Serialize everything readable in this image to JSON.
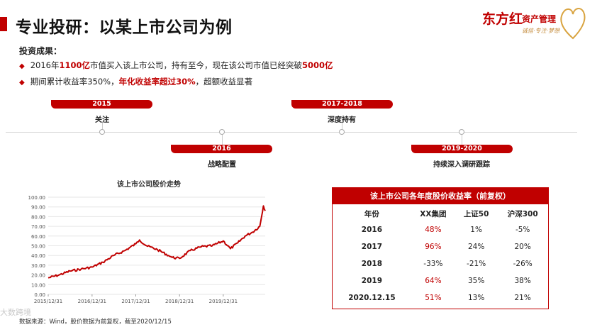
{
  "header": {
    "title": "专业投研：以某上市公司为例",
    "logo_main": "东方红",
    "logo_side": "资产管理",
    "logo_tag": "诚信·专注·梦想"
  },
  "results": {
    "label": "投资成果：",
    "bullet1": {
      "pre": "2016年",
      "hl1": "1100亿",
      "mid": "市值买入该上市公司，持有至今，现在该公司市值已经突破",
      "hl2": "5000亿"
    },
    "bullet2": {
      "pre": "期间累计收益率350%，",
      "hl": "年化收益率超过30%",
      "post": "，超额收益显著"
    }
  },
  "timeline": [
    {
      "year": "2016",
      "label": "战略配置",
      "pos": "below"
    },
    {
      "year": "2015",
      "label": "关注",
      "pos": "above"
    },
    {
      "year": "2017-2018",
      "label": "深度持有",
      "pos": "above"
    },
    {
      "year": "2019-2020",
      "label": "持续深入调研跟踪",
      "pos": "below"
    }
  ],
  "chart_data": {
    "type": "line",
    "title": "该上市公司股价走势",
    "xlabel": "",
    "ylabel": "",
    "ylim": [
      0,
      100
    ],
    "yticks": [
      0,
      10,
      20,
      30,
      40,
      50,
      60,
      70,
      80,
      90,
      100
    ],
    "ytick_labels": [
      "0.00",
      "10.00",
      "20.00",
      "30.00",
      "40.00",
      "50.00",
      "60.00",
      "70.00",
      "80.00",
      "90.00",
      "100.00"
    ],
    "xticks": [
      "2015/12/31",
      "2016/12/31",
      "2017/12/31",
      "2018/12/31",
      "2019/12/31"
    ],
    "xlim": [
      "2015/12/31",
      "2020/12/15"
    ],
    "grid": true,
    "color": "#c00000",
    "series": [
      {
        "x": [
          "2015/12/31",
          "2016/03/31",
          "2016/06/30",
          "2016/09/30",
          "2016/12/31",
          "2017/03/31",
          "2017/06/30",
          "2017/09/30",
          "2017/12/31",
          "2018/01/31",
          "2018/03/31",
          "2018/06/30",
          "2018/09/30",
          "2018/10/31",
          "2018/12/31",
          "2019/03/31",
          "2019/06/30",
          "2019/09/30",
          "2019/12/31",
          "2020/02/29",
          "2020/04/30",
          "2020/06/30",
          "2020/08/31",
          "2020/10/31",
          "2020/11/15",
          "2020/11/30",
          "2020/12/15"
        ],
        "values": [
          17,
          20,
          24,
          26,
          28,
          33,
          40,
          45,
          52,
          56,
          50,
          46,
          40,
          38,
          37,
          45,
          49,
          50,
          55,
          47,
          53,
          60,
          64,
          70,
          80,
          91,
          86
        ]
      }
    ]
  },
  "table": {
    "title": "该上市公司各年度股价收益率（前复权）",
    "headers": [
      "年份",
      "XX集团",
      "上证50",
      "沪深300"
    ],
    "rows": [
      [
        "2016",
        "48%",
        "1%",
        "-5%"
      ],
      [
        "2017",
        "96%",
        "24%",
        "20%"
      ],
      [
        "2018",
        "-33%",
        "-21%",
        "-26%"
      ],
      [
        "2019",
        "64%",
        "35%",
        "38%"
      ],
      [
        "2020.12.15",
        "51%",
        "13%",
        "21%"
      ]
    ]
  },
  "source": "数据来源：Wind，股价数据为前复权，截至2020/12/15",
  "watermark": "大数跨境"
}
